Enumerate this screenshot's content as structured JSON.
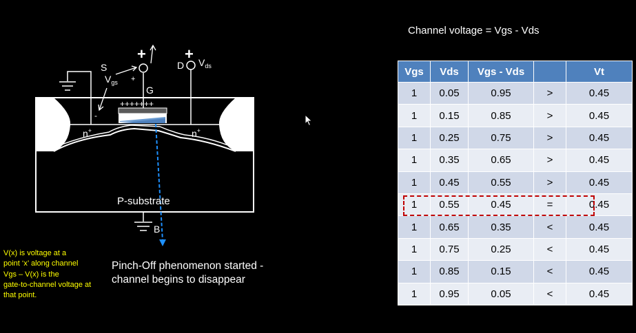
{
  "diagram": {
    "source_label": "S",
    "gate_label": "G",
    "drain_label": "D",
    "body_label": "B",
    "vgs_label": "V",
    "vgs_sub": "gs",
    "vds_label": "V",
    "vds_sub": "ds",
    "plus": "+",
    "minus": "-",
    "gate_charges": "+++++++",
    "n_region_left": "n",
    "n_region_right": "n",
    "n_sup": "+",
    "substrate_label": "P-substrate"
  },
  "table": {
    "title": "Channel voltage = Vgs - Vds",
    "headers": [
      "Vgs",
      "Vds",
      "Vgs - Vds",
      "",
      "Vt"
    ],
    "rows": [
      [
        "1",
        "0.05",
        "0.95",
        ">",
        "0.45"
      ],
      [
        "1",
        "0.15",
        "0.85",
        ">",
        "0.45"
      ],
      [
        "1",
        "0.25",
        "0.75",
        ">",
        "0.45"
      ],
      [
        "1",
        "0.35",
        "0.65",
        ">",
        "0.45"
      ],
      [
        "1",
        "0.45",
        "0.55",
        ">",
        "0.45"
      ],
      [
        "1",
        "0.55",
        "0.45",
        "=",
        "0.45"
      ],
      [
        "1",
        "0.65",
        "0.35",
        "<",
        "0.45"
      ],
      [
        "1",
        "0.75",
        "0.25",
        "<",
        "0.45"
      ],
      [
        "1",
        "0.85",
        "0.15",
        "<",
        "0.45"
      ],
      [
        "1",
        "0.95",
        "0.05",
        "<",
        "0.45"
      ]
    ],
    "highlighted_row": 5
  },
  "note_lines": [
    "V(x) is voltage at a",
    "point ‘x’ along channel",
    "Vgs – V(x) is the",
    "gate-to-channel voltage at",
    "that point."
  ],
  "caption_lines": [
    "Pinch-Off phenomenon started -",
    "channel begins to disappear"
  ],
  "colors": {
    "table_header": "#4f81bd",
    "table_row_dark": "#d0d8e8",
    "table_row_light": "#e9edf4",
    "highlight_border": "#c00000",
    "note_text": "#ffff00",
    "pinch_line": "#1e90ff"
  }
}
